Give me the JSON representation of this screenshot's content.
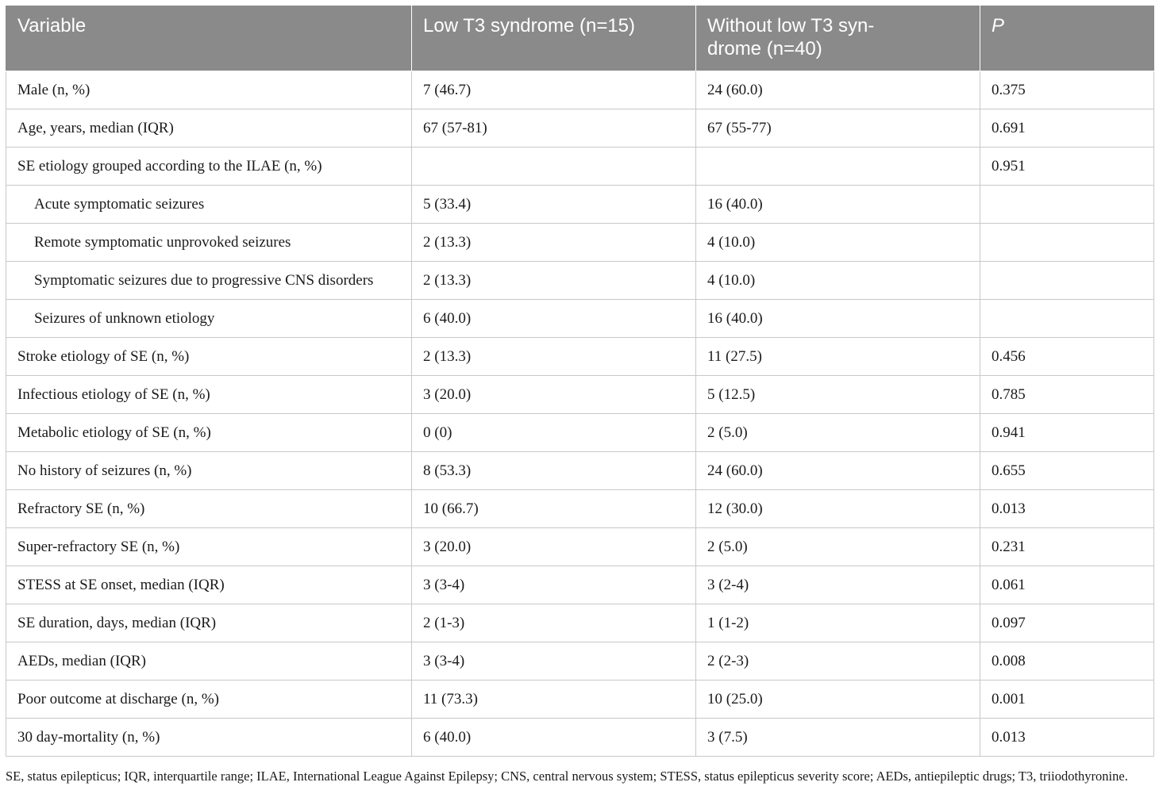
{
  "table": {
    "headers": [
      "Variable",
      "Low T3 syndrome (n=15)",
      "Without low T3 syn-\ndrome (n=40)",
      "P"
    ],
    "rows": [
      {
        "variable": "Male (n, %)",
        "low": "7 (46.7)",
        "without": "24 (60.0)",
        "p": "0.375",
        "indent": false
      },
      {
        "variable": "Age, years, median (IQR)",
        "low": "67 (57-81)",
        "without": "67 (55-77)",
        "p": "0.691",
        "indent": false
      },
      {
        "variable": "SE etiology grouped according to the ILAE (n, %)",
        "low": "",
        "without": "",
        "p": "0.951",
        "indent": false
      },
      {
        "variable": "Acute symptomatic seizures",
        "low": "5 (33.4)",
        "without": "16 (40.0)",
        "p": "",
        "indent": true
      },
      {
        "variable": "Remote symptomatic unprovoked seizures",
        "low": "2 (13.3)",
        "without": "4 (10.0)",
        "p": "",
        "indent": true
      },
      {
        "variable": "Symptomatic seizures due to progressive CNS disorders",
        "low": "2 (13.3)",
        "without": "4 (10.0)",
        "p": "",
        "indent": true
      },
      {
        "variable": "Seizures of unknown etiology",
        "low": "6 (40.0)",
        "without": "16 (40.0)",
        "p": "",
        "indent": true
      },
      {
        "variable": "Stroke etiology of SE (n, %)",
        "low": "2 (13.3)",
        "without": "11 (27.5)",
        "p": "0.456",
        "indent": false
      },
      {
        "variable": "Infectious etiology of SE (n, %)",
        "low": "3 (20.0)",
        "without": "5 (12.5)",
        "p": "0.785",
        "indent": false
      },
      {
        "variable": "Metabolic etiology of SE (n, %)",
        "low": "0 (0)",
        "without": "2 (5.0)",
        "p": "0.941",
        "indent": false
      },
      {
        "variable": "No history of seizures (n, %)",
        "low": "8 (53.3)",
        "without": "24 (60.0)",
        "p": "0.655",
        "indent": false
      },
      {
        "variable": "Refractory SE (n, %)",
        "low": "10 (66.7)",
        "without": "12 (30.0)",
        "p": "0.013",
        "indent": false
      },
      {
        "variable": "Super-refractory SE (n, %)",
        "low": "3 (20.0)",
        "without": "2 (5.0)",
        "p": "0.231",
        "indent": false
      },
      {
        "variable": "STESS at SE onset, median (IQR)",
        "low": "3 (3-4)",
        "without": "3 (2-4)",
        "p": "0.061",
        "indent": false
      },
      {
        "variable": "SE duration, days, median (IQR)",
        "low": "2 (1-3)",
        "without": "1 (1-2)",
        "p": "0.097",
        "indent": false
      },
      {
        "variable": "AEDs, median (IQR)",
        "low": "3 (3-4)",
        "without": "2 (2-3)",
        "p": "0.008",
        "indent": false
      },
      {
        "variable": "Poor outcome at discharge (n, %)",
        "low": "11 (73.3)",
        "without": "10 (25.0)",
        "p": "0.001",
        "indent": false
      },
      {
        "variable": "30 day-mortality (n, %)",
        "low": "6 (40.0)",
        "without": "3 (7.5)",
        "p": "0.013",
        "indent": false
      }
    ]
  },
  "footnote": "SE, status epilepticus; IQR, interquartile range; ILAE, International League Against Epilepsy; CNS, central nervous system; STESS, status epilepticus severity score; AEDs, antiepileptic drugs; T3, triiodothyronine."
}
